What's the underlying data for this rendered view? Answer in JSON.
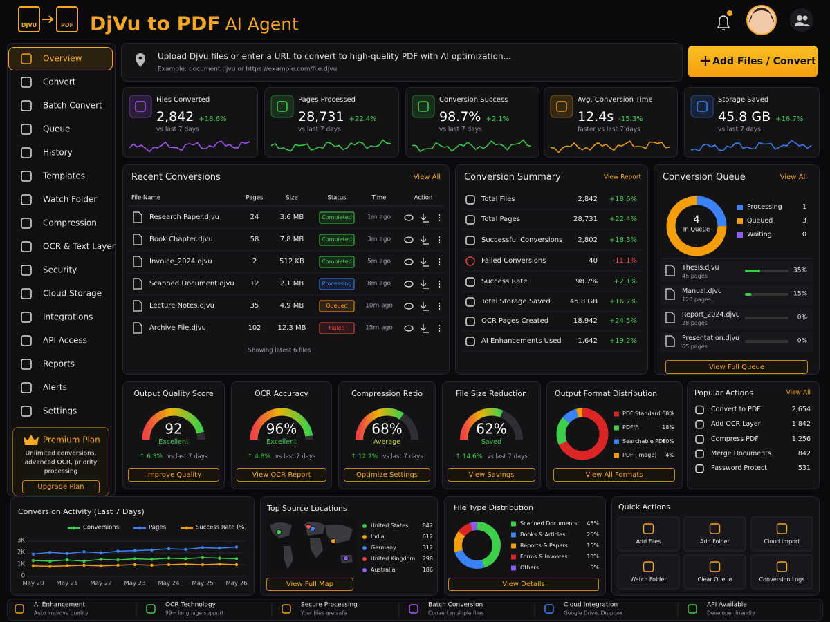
{
  "header": {
    "logo_from": "DJVU",
    "logo_to": "PDF",
    "title": "DjVu to PDF",
    "title_suffix": "AI Agent"
  },
  "nav": [
    "Overview",
    "Convert",
    "Batch Convert",
    "Queue",
    "History",
    "Templates",
    "Watch Folder",
    "Compression",
    "OCR & Text Layer",
    "Security",
    "Cloud Storage",
    "Integrations",
    "API Access",
    "Reports",
    "Alerts",
    "Settings"
  ],
  "premium": {
    "title": "Premium Plan",
    "text": "Unlimited conversions, advanced OCR, priority processing",
    "button": "Upgrade Plan"
  },
  "upload": {
    "prompt": "Upload DjVu files or enter a URL to convert to high-quality PDF with AI optimization...",
    "example": "Example: document.djvu or https://example.com/file.djvu",
    "button": "Add Files / Convert"
  },
  "stats": [
    {
      "label": "Files Converted",
      "value": "2,842",
      "change": "+18.6%",
      "note": "vs last 7 days",
      "color": "#a855f7"
    },
    {
      "label": "Pages Processed",
      "value": "28,731",
      "change": "+22.4%",
      "note": "vs last 7 days",
      "color": "#3ecf4a"
    },
    {
      "label": "Conversion Success",
      "value": "98.7%",
      "change": "+2.1%",
      "note": "vs last 7 days",
      "color": "#3ecf4a"
    },
    {
      "label": "Avg. Conversion Time",
      "value": "12.4s",
      "change": "-15.3%",
      "note": "faster vs last 7 days",
      "color": "#f59e0b"
    },
    {
      "label": "Storage Saved",
      "value": "45.8 GB",
      "change": "+16.7%",
      "note": "vs last 7 days",
      "color": "#3b82f6"
    }
  ],
  "recent": {
    "title": "Recent Conversions",
    "link": "View All",
    "columns": [
      "File Name",
      "Pages",
      "Size",
      "Status",
      "Time",
      "Action"
    ],
    "rows": [
      {
        "name": "Research Paper.djvu",
        "pages": "24",
        "size": "3.6 MB",
        "status": "Completed",
        "time": "1m ago",
        "status_color": "#3ecf4a"
      },
      {
        "name": "Book Chapter.djvu",
        "pages": "58",
        "size": "7.8 MB",
        "status": "Completed",
        "time": "3m ago",
        "status_color": "#3ecf4a"
      },
      {
        "name": "Invoice_2024.djvu",
        "pages": "2",
        "size": "512 KB",
        "status": "Completed",
        "time": "5m ago",
        "status_color": "#3ecf4a"
      },
      {
        "name": "Scanned Document.djvu",
        "pages": "12",
        "size": "2.1 MB",
        "status": "Processing",
        "time": "8m ago",
        "status_color": "#3b82f6"
      },
      {
        "name": "Lecture Notes.djvu",
        "pages": "35",
        "size": "4.9 MB",
        "status": "Queued",
        "time": "10m ago",
        "status_color": "#f59e0b"
      },
      {
        "name": "Archive File.djvu",
        "pages": "102",
        "size": "12.3 MB",
        "status": "Failed",
        "time": "15m ago",
        "status_color": "#ef4444"
      }
    ],
    "footer": "Showing latest 6 files"
  },
  "summary": {
    "title": "Conversion Summary",
    "link": "View Report",
    "rows": [
      {
        "label": "Total Files",
        "value": "2,842",
        "change": "+18.6%"
      },
      {
        "label": "Total Pages",
        "value": "28,731",
        "change": "+22.4%"
      },
      {
        "label": "Successful Conversions",
        "value": "2,802",
        "change": "+18.3%"
      },
      {
        "label": "Failed Conversions",
        "value": "40",
        "change": "-11.1%"
      },
      {
        "label": "Success Rate",
        "value": "98.7%",
        "change": "+2.1%"
      },
      {
        "label": "Total Storage Saved",
        "value": "45.8 GB",
        "change": "+16.7%"
      },
      {
        "label": "OCR Pages Created",
        "value": "18,942",
        "change": "+24.5%"
      },
      {
        "label": "AI Enhancements Used",
        "value": "1,642",
        "change": "+19.2%"
      }
    ]
  },
  "queue": {
    "title": "Conversion Queue",
    "link": "View All",
    "center_value": "4",
    "center_label": "In Queue",
    "legend": [
      {
        "name": "Processing",
        "value": 1,
        "color": "#3b82f6"
      },
      {
        "name": "Queued",
        "value": 3,
        "color": "#f59e0b"
      },
      {
        "name": "Waiting",
        "value": 0,
        "color": "#8b5cf6"
      }
    ],
    "files": [
      {
        "name": "Thesis.djvu",
        "pages": "45 pages",
        "progress": 35,
        "progress_label": "35%"
      },
      {
        "name": "Manual.djvu",
        "pages": "120 pages",
        "progress": 15,
        "progress_label": "15%"
      },
      {
        "name": "Report_2024.djvu",
        "pages": "28 pages",
        "progress": 0,
        "progress_label": "0%"
      },
      {
        "name": "Presentation.djvu",
        "pages": "65 pages",
        "progress": 0,
        "progress_label": "0%"
      }
    ],
    "button": "View Full Queue"
  },
  "gauges": [
    {
      "title": "Output Quality Score",
      "value": 92,
      "status": "Excellent",
      "status_color": "#3ecf4a",
      "change": "↑ 6.3%",
      "note": "vs last 7 days",
      "button": "Improve Quality"
    },
    {
      "title": "OCR Accuracy",
      "value": 96,
      "value_label": "96%",
      "status": "Excellent",
      "status_color": "#3ecf4a",
      "change": "↑ 4.8%",
      "note": "vs last 7 days",
      "button": "View OCR Report"
    },
    {
      "title": "Compression Ratio",
      "value": 68,
      "value_label": "68%",
      "status": "Average",
      "status_color": "#c9d33a",
      "change": "↑ 12.2%",
      "note": "vs last 7 days",
      "button": "Optimize Settings"
    },
    {
      "title": "File Size Reduction",
      "value": 62,
      "value_label": "62%",
      "status": "Saved",
      "status_color": "#3ecf4a",
      "change": "↑ 14.6%",
      "note": "vs last 7 days",
      "button": "View Savings"
    }
  ],
  "formats": {
    "title": "Output Format Distribution",
    "items": [
      {
        "name": "PDF Standard",
        "value": 68,
        "label": "68%",
        "color": "#dc2626"
      },
      {
        "name": "PDF/A",
        "value": 18,
        "label": "18%",
        "color": "#3ecf4a"
      },
      {
        "name": "Searchable PDF",
        "value": 10,
        "label": "10%",
        "color": "#3b82f6"
      },
      {
        "name": "PDF (Image)",
        "value": 4,
        "label": "4%",
        "color": "#f59e0b"
      }
    ],
    "button": "View All Formats"
  },
  "popular": {
    "title": "Popular Actions",
    "link": "View All",
    "items": [
      {
        "name": "Convert to PDF",
        "value": "2,654"
      },
      {
        "name": "Add OCR Layer",
        "value": "1,842"
      },
      {
        "name": "Compress PDF",
        "value": "1,256"
      },
      {
        "name": "Merge Documents",
        "value": "842"
      },
      {
        "name": "Password Protect",
        "value": "531"
      }
    ]
  },
  "chart_data": {
    "type": "line",
    "title": "Conversion Activity (Last 7 Days)",
    "categories": [
      "May 20",
      null,
      "May 21",
      null,
      "May 22",
      null,
      "May 23",
      null,
      "May 24",
      null,
      "May 25",
      null,
      "May 26"
    ],
    "series": [
      {
        "name": "Conversions",
        "color": "#3ecf4a",
        "values": [
          1350,
          1300,
          1400,
          1300,
          1450,
          1400,
          1500,
          1450,
          1550,
          1500,
          1600,
          1550,
          1500
        ]
      },
      {
        "name": "Pages",
        "color": "#3b82f6",
        "values": [
          1900,
          2050,
          1950,
          2100,
          2000,
          2150,
          2200,
          2250,
          2350,
          2300,
          2450,
          2400,
          2500
        ]
      },
      {
        "name": "Success Rate (%)",
        "color": "#f59e0b",
        "values": [
          900,
          850,
          900,
          950,
          900,
          950,
          1000,
          950,
          1000,
          1050,
          1000,
          1050,
          1000
        ]
      }
    ],
    "ylim": [
      0,
      3000
    ],
    "yticks": [
      0,
      {
        "value": 1000,
        "label": "1K"
      },
      {
        "value": 2000,
        "label": "2K"
      },
      {
        "value": 3000,
        "label": "3K"
      }
    ],
    "grid": true
  },
  "locations": {
    "title": "Top Source Locations",
    "items": [
      {
        "name": "United States",
        "value": "842",
        "color": "#3ecf4a"
      },
      {
        "name": "India",
        "value": "612",
        "color": "#f59e0b"
      },
      {
        "name": "Germany",
        "value": "312",
        "color": "#3b82f6"
      },
      {
        "name": "United Kingdom",
        "value": "298",
        "color": "#ef4444"
      },
      {
        "name": "Australia",
        "value": "186",
        "color": "#8b5cf6"
      }
    ],
    "button": "View Full Map"
  },
  "filetypes": {
    "title": "File Type Distribution",
    "items": [
      {
        "name": "Scanned Documents",
        "value": 45,
        "label": "45%",
        "color": "#3ecf4a"
      },
      {
        "name": "Books & Articles",
        "value": 25,
        "label": "25%",
        "color": "#3b82f6"
      },
      {
        "name": "Reports & Papers",
        "value": 15,
        "label": "15%",
        "color": "#f59e0b"
      },
      {
        "name": "Forms & Invoices",
        "value": 10,
        "label": "10%",
        "color": "#dc2626"
      },
      {
        "name": "Others",
        "value": 5,
        "label": "5%",
        "color": "#8b5cf6"
      }
    ],
    "button": "View Details"
  },
  "quick": {
    "title": "Quick Actions",
    "items": [
      "Add Files",
      "Add Folder",
      "Cloud Import",
      "Watch Folder",
      "Clear Queue",
      "Conversion Logs"
    ]
  },
  "features": [
    {
      "title": "AI Enhancement",
      "sub": "Auto improve quality",
      "color": "#f59e0b"
    },
    {
      "title": "OCR Technology",
      "sub": "99+ language support",
      "color": "#3ecf4a"
    },
    {
      "title": "Secure Processing",
      "sub": "Your files are safe",
      "color": "#f59e0b"
    },
    {
      "title": "Batch Conversion",
      "sub": "Convert multiple files",
      "color": "#a855f7"
    },
    {
      "title": "Cloud Integration",
      "sub": "Google Drive, Dropbox",
      "color": "#3b82f6"
    },
    {
      "title": "API Available",
      "sub": "Developer friendly",
      "color": "#3ecf4a"
    }
  ]
}
